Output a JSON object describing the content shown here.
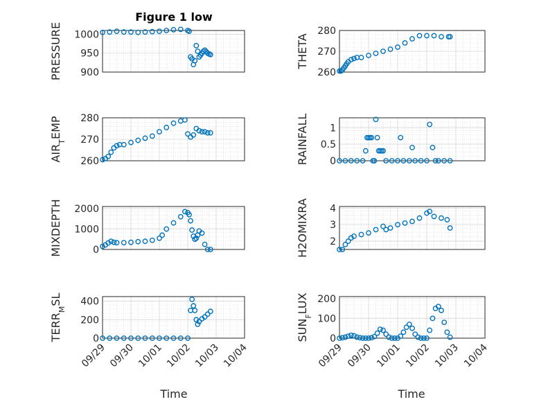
{
  "figure": {
    "title": "Figure 1 low",
    "marker_color": "#0072BD",
    "grid": true,
    "minor_grid": true
  },
  "chart_data": [
    {
      "type": "scatter",
      "ylabel": "PRESSURE",
      "ylabel_parts": [
        [
          "PRESSURE",
          ""
        ]
      ],
      "xlim": [
        "09/29",
        "10/04"
      ],
      "ylim": [
        900,
        1010
      ],
      "yticks": [
        "900",
        "950",
        "1000"
      ],
      "xticks": [
        "09/29",
        "09/30",
        "10/01",
        "10/02",
        "10/03",
        "10/04"
      ],
      "x": [
        0.0,
        0.25,
        0.5,
        0.75,
        1.0,
        1.25,
        1.5,
        1.75,
        2.0,
        2.25,
        2.5,
        2.75,
        3.0,
        3.05,
        3.1,
        3.15,
        3.2,
        3.25,
        3.3,
        3.35,
        3.4,
        3.45,
        3.5,
        3.55,
        3.6,
        3.65,
        3.7,
        3.75,
        3.8
      ],
      "y": [
        1005,
        1006,
        1008,
        1006,
        1006,
        1005,
        1006,
        1007,
        1008,
        1010,
        1012,
        1013,
        1010,
        1008,
        940,
        935,
        920,
        930,
        970,
        955,
        940,
        945,
        950,
        955,
        958,
        954,
        950,
        948,
        946
      ]
    },
    {
      "type": "scatter",
      "ylabel": "THETA",
      "ylabel_parts": [
        [
          "THETA",
          ""
        ]
      ],
      "xlim": [
        "09/29",
        "10/04"
      ],
      "ylim": [
        260,
        280
      ],
      "yticks": [
        "260",
        "270",
        "280"
      ],
      "xticks": [
        "09/29",
        "09/30",
        "10/01",
        "10/02",
        "10/03",
        "10/04"
      ],
      "x": [
        0.0,
        0.05,
        0.1,
        0.15,
        0.2,
        0.25,
        0.3,
        0.4,
        0.5,
        0.6,
        0.75,
        1.0,
        1.25,
        1.5,
        1.75,
        2.0,
        2.25,
        2.5,
        2.75,
        3.0,
        3.25,
        3.5,
        3.75,
        3.8
      ],
      "y": [
        260.5,
        260.5,
        261,
        262,
        263,
        264,
        265,
        266,
        266.5,
        267,
        267,
        268,
        269,
        270,
        271,
        272,
        274,
        276,
        277.5,
        277.5,
        277.5,
        277,
        277,
        277
      ]
    },
    {
      "type": "scatter",
      "ylabel": "AIR_TEMP",
      "ylabel_parts": [
        [
          "AIR",
          ""
        ],
        [
          "T",
          "sub"
        ],
        [
          "EMP",
          ""
        ]
      ],
      "xlim": [
        "09/29",
        "10/04"
      ],
      "ylim": [
        260,
        280
      ],
      "yticks": [
        "260",
        "270",
        "280"
      ],
      "xticks": [
        "09/29",
        "09/30",
        "10/01",
        "10/02",
        "10/03",
        "10/04"
      ],
      "x": [
        0.0,
        0.1,
        0.2,
        0.3,
        0.4,
        0.5,
        0.6,
        0.75,
        1.0,
        1.25,
        1.5,
        1.75,
        2.0,
        2.25,
        2.5,
        2.75,
        2.9,
        3.0,
        3.1,
        3.2,
        3.3,
        3.4,
        3.5,
        3.6,
        3.7,
        3.8
      ],
      "y": [
        260.5,
        261,
        262,
        264,
        266,
        267,
        267.5,
        267.5,
        268.5,
        269.5,
        270.5,
        271.5,
        273.5,
        275.5,
        277.5,
        278.5,
        279,
        272.5,
        271,
        272,
        275,
        274,
        273.5,
        273.5,
        273,
        273
      ]
    },
    {
      "type": "scatter",
      "ylabel": "RAINFALL",
      "ylabel_parts": [
        [
          "RAINFALL",
          ""
        ]
      ],
      "xlim": [
        "09/29",
        "10/04"
      ],
      "ylim": [
        0,
        1.3
      ],
      "yticks": [
        "0",
        "0.5",
        "1"
      ],
      "xticks": [
        "09/29",
        "09/30",
        "10/01",
        "10/02",
        "10/03",
        "10/04"
      ],
      "x": [
        0.0,
        0.2,
        0.4,
        0.6,
        0.8,
        0.9,
        0.95,
        1.0,
        1.05,
        1.1,
        1.15,
        1.2,
        1.25,
        1.3,
        1.35,
        1.4,
        1.45,
        1.5,
        1.6,
        1.8,
        2.0,
        2.1,
        2.2,
        2.4,
        2.5,
        2.6,
        2.8,
        3.0,
        3.1,
        3.2,
        3.3,
        3.4,
        3.6,
        3.8
      ],
      "y": [
        0,
        0,
        0,
        0,
        0,
        0.3,
        0.7,
        0.7,
        0.7,
        0.7,
        0,
        0,
        1.25,
        0.7,
        0.3,
        0.3,
        0.3,
        0.3,
        0,
        0,
        0,
        0.7,
        0,
        0,
        0.4,
        0,
        0,
        0,
        1.1,
        0.4,
        0,
        0,
        0,
        0
      ]
    },
    {
      "type": "scatter",
      "ylabel": "MIXDEPTH",
      "ylabel_parts": [
        [
          "MIXDEPTH",
          ""
        ]
      ],
      "xlim": [
        "09/29",
        "10/04"
      ],
      "ylim": [
        0,
        2100
      ],
      "yticks": [
        "0",
        "1000",
        "2000"
      ],
      "xticks": [
        "09/29",
        "09/30",
        "10/01",
        "10/02",
        "10/03",
        "10/04"
      ],
      "x": [
        0.0,
        0.1,
        0.2,
        0.3,
        0.4,
        0.5,
        0.75,
        1.0,
        1.25,
        1.5,
        1.75,
        2.0,
        2.1,
        2.25,
        2.5,
        2.75,
        2.9,
        3.0,
        3.05,
        3.1,
        3.15,
        3.2,
        3.25,
        3.3,
        3.35,
        3.4,
        3.5,
        3.6,
        3.7,
        3.8
      ],
      "y": [
        150,
        220,
        320,
        400,
        350,
        330,
        330,
        350,
        380,
        400,
        450,
        550,
        700,
        1000,
        1300,
        1600,
        1850,
        1800,
        1700,
        1400,
        950,
        650,
        500,
        550,
        700,
        900,
        800,
        250,
        0,
        0
      ]
    },
    {
      "type": "scatter",
      "ylabel": "H2OMIXRA",
      "ylabel_parts": [
        [
          "H2OMIXRA",
          ""
        ]
      ],
      "xlim": [
        "09/29",
        "10/04"
      ],
      "ylim": [
        1.5,
        4.1
      ],
      "yticks": [
        "2",
        "3",
        "4"
      ],
      "xticks": [
        "09/29",
        "09/30",
        "10/01",
        "10/02",
        "10/03",
        "10/04"
      ],
      "x": [
        0.0,
        0.1,
        0.2,
        0.3,
        0.4,
        0.5,
        0.75,
        1.0,
        1.25,
        1.5,
        1.6,
        1.75,
        2.0,
        2.25,
        2.5,
        2.75,
        3.0,
        3.1,
        3.25,
        3.5,
        3.7,
        3.8
      ],
      "y": [
        1.5,
        1.5,
        1.8,
        2.0,
        2.2,
        2.3,
        2.4,
        2.5,
        2.7,
        2.9,
        2.7,
        2.8,
        3.0,
        3.1,
        3.2,
        3.4,
        3.7,
        3.8,
        3.5,
        3.4,
        3.3,
        2.8
      ]
    },
    {
      "type": "scatter",
      "ylabel": "TERR_MSL",
      "ylabel_parts": [
        [
          "TERR",
          ""
        ],
        [
          "M",
          "sub"
        ],
        [
          "SL",
          ""
        ]
      ],
      "xlim": [
        "09/29",
        "10/04"
      ],
      "ylim": [
        0,
        450
      ],
      "yticks": [
        "0",
        "200",
        "400"
      ],
      "xticks": [
        "09/29",
        "09/30",
        "10/01",
        "10/02",
        "10/03",
        "10/04"
      ],
      "x": [
        0.0,
        0.25,
        0.5,
        0.75,
        1.0,
        1.25,
        1.5,
        1.75,
        2.0,
        2.25,
        2.5,
        2.75,
        3.0,
        3.1,
        3.15,
        3.2,
        3.25,
        3.3,
        3.35,
        3.4,
        3.5,
        3.6,
        3.7,
        3.8
      ],
      "y": [
        0,
        0,
        0,
        0,
        0,
        0,
        0,
        0,
        0,
        0,
        0,
        0,
        0,
        300,
        420,
        350,
        300,
        200,
        150,
        180,
        210,
        230,
        260,
        290
      ]
    },
    {
      "type": "scatter",
      "ylabel": "SUN_FLUX",
      "ylabel_parts": [
        [
          "SUN",
          ""
        ],
        [
          "F",
          "sub"
        ],
        [
          "LUX",
          ""
        ]
      ],
      "xlim": [
        "09/29",
        "10/04"
      ],
      "ylim": [
        0,
        210
      ],
      "yticks": [
        "0",
        "100",
        "200"
      ],
      "xticks": [
        "09/29",
        "09/30",
        "10/01",
        "10/02",
        "10/03",
        "10/04"
      ],
      "x": [
        0.0,
        0.1,
        0.2,
        0.3,
        0.4,
        0.5,
        0.6,
        0.7,
        0.8,
        0.9,
        1.0,
        1.1,
        1.2,
        1.3,
        1.4,
        1.5,
        1.6,
        1.7,
        1.8,
        1.9,
        2.0,
        2.1,
        2.2,
        2.3,
        2.4,
        2.5,
        2.6,
        2.7,
        2.8,
        2.9,
        3.0,
        3.1,
        3.2,
        3.3,
        3.4,
        3.5,
        3.6,
        3.7,
        3.8
      ],
      "y": [
        0,
        2,
        5,
        10,
        15,
        12,
        5,
        2,
        0,
        0,
        0,
        2,
        8,
        25,
        45,
        40,
        20,
        5,
        0,
        0,
        0,
        10,
        30,
        55,
        70,
        50,
        20,
        5,
        0,
        0,
        0,
        40,
        100,
        150,
        160,
        140,
        80,
        30,
        5
      ]
    }
  ],
  "xlabel": "Time"
}
